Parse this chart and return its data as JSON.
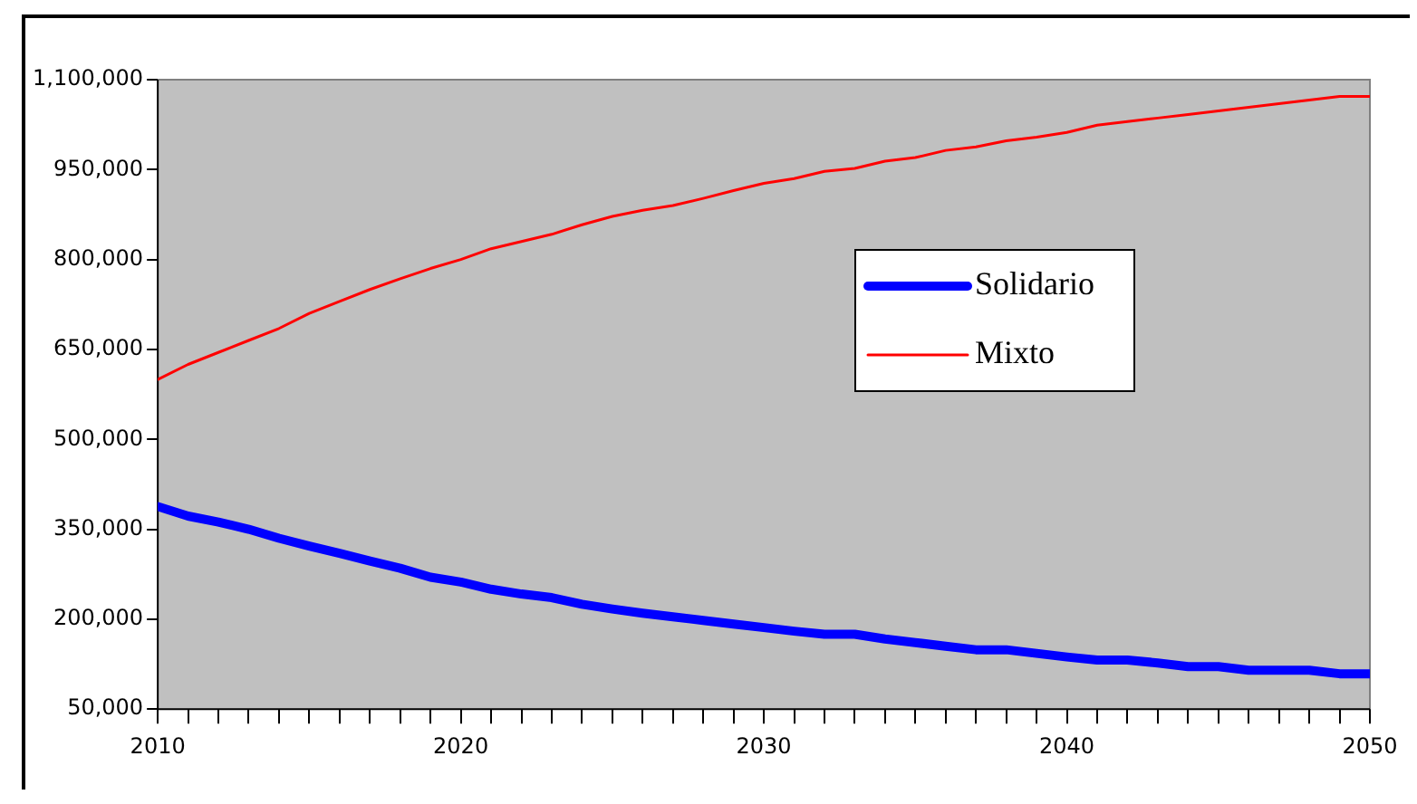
{
  "chart_data": {
    "type": "line",
    "x": [
      2010,
      2011,
      2012,
      2013,
      2014,
      2015,
      2016,
      2017,
      2018,
      2019,
      2020,
      2021,
      2022,
      2023,
      2024,
      2025,
      2026,
      2027,
      2028,
      2029,
      2030,
      2031,
      2032,
      2033,
      2034,
      2035,
      2036,
      2037,
      2038,
      2039,
      2040,
      2041,
      2042,
      2043,
      2044,
      2045,
      2046,
      2047,
      2048,
      2049,
      2050
    ],
    "series": [
      {
        "name": "Solidario",
        "color": "#0000ff",
        "values": [
          388000,
          372000,
          362000,
          350000,
          335000,
          322000,
          310000,
          297000,
          285000,
          270000,
          262000,
          250000,
          242000,
          236000,
          225000,
          217000,
          210000,
          204000,
          198000,
          192000,
          186000,
          180000,
          175000,
          175000,
          167000,
          161000,
          155000,
          149000,
          149000,
          143000,
          137000,
          132000,
          132000,
          127000,
          121000,
          121000,
          115000,
          115000,
          115000,
          109000,
          109000
        ]
      },
      {
        "name": "Mixto",
        "color": "#ff0000",
        "values": [
          600000,
          625000,
          645000,
          665000,
          685000,
          710000,
          730000,
          750000,
          768000,
          785000,
          800000,
          818000,
          830000,
          842000,
          858000,
          872000,
          882000,
          890000,
          902000,
          915000,
          927000,
          935000,
          947000,
          952000,
          964000,
          970000,
          982000,
          988000,
          998000,
          1004000,
          1012000,
          1024000,
          1030000,
          1036000,
          1042000,
          1048000,
          1054000,
          1060000,
          1066000,
          1072000,
          1072000
        ]
      }
    ],
    "xlim": [
      2010,
      2050
    ],
    "xticks": [
      2010,
      {
        "value": 2011,
        "label": null
      },
      {
        "value": 2012,
        "label": null
      },
      {
        "value": 2013,
        "label": null
      },
      {
        "value": 2014,
        "label": null
      },
      {
        "value": 2015,
        "label": null
      },
      {
        "value": 2016,
        "label": null
      },
      {
        "value": 2017,
        "label": null
      },
      {
        "value": 2018,
        "label": null
      },
      {
        "value": 2019,
        "label": null
      },
      2020,
      {
        "value": 2021,
        "label": null
      },
      {
        "value": 2022,
        "label": null
      },
      {
        "value": 2023,
        "label": null
      },
      {
        "value": 2024,
        "label": null
      },
      {
        "value": 2025,
        "label": null
      },
      {
        "value": 2026,
        "label": null
      },
      {
        "value": 2027,
        "label": null
      },
      {
        "value": 2028,
        "label": null
      },
      {
        "value": 2029,
        "label": null
      },
      2030,
      {
        "value": 2031,
        "label": null
      },
      {
        "value": 2032,
        "label": null
      },
      {
        "value": 2033,
        "label": null
      },
      {
        "value": 2034,
        "label": null
      },
      {
        "value": 2035,
        "label": null
      },
      {
        "value": 2036,
        "label": null
      },
      {
        "value": 2037,
        "label": null
      },
      {
        "value": 2038,
        "label": null
      },
      {
        "value": 2039,
        "label": null
      },
      2040,
      {
        "value": 2041,
        "label": null
      },
      {
        "value": 2042,
        "label": null
      },
      {
        "value": 2043,
        "label": null
      },
      {
        "value": 2044,
        "label": null
      },
      {
        "value": 2045,
        "label": null
      },
      {
        "value": 2046,
        "label": null
      },
      {
        "value": 2047,
        "label": null
      },
      {
        "value": 2048,
        "label": null
      },
      {
        "value": 2049,
        "label": null
      },
      2050
    ],
    "ylim": [
      50000,
      1100000
    ],
    "yticks": [
      {
        "value": 50000,
        "label": "50,000"
      },
      {
        "value": 200000,
        "label": "200,000"
      },
      {
        "value": 350000,
        "label": "350,000"
      },
      {
        "value": 500000,
        "label": "500,000"
      },
      {
        "value": 650000,
        "label": "650,000"
      },
      {
        "value": 800000,
        "label": "800,000"
      },
      {
        "value": 950000,
        "label": "950,000"
      },
      {
        "value": 1100000,
        "label": "1,100,000"
      }
    ],
    "grid": false,
    "legend": "right",
    "marker": "none"
  }
}
